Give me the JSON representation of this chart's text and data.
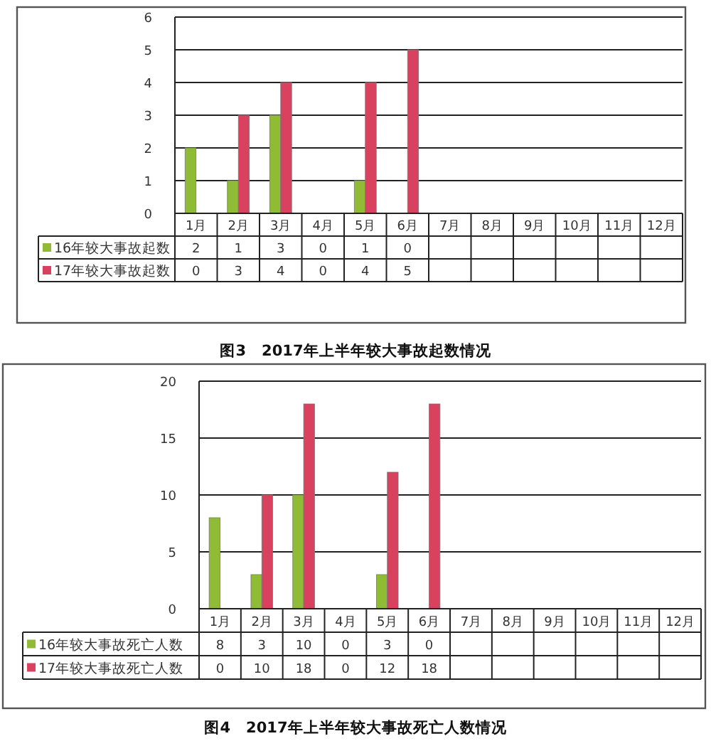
{
  "chart_data": [
    {
      "type": "bar",
      "title": "图3　2017年上半年较大事故起数情况",
      "categories": [
        "1月",
        "2月",
        "3月",
        "4月",
        "5月",
        "6月",
        "7月",
        "8月",
        "9月",
        "10月",
        "11月",
        "12月"
      ],
      "ylim": [
        0,
        6
      ],
      "yticks": [
        0,
        1,
        2,
        3,
        4,
        5,
        6
      ],
      "grid": "y",
      "legend": "bottom",
      "data_labels": true,
      "series": [
        {
          "name": "16年较大事故起数",
          "color": "#8fbc34",
          "values": [
            2,
            1,
            3,
            0,
            1,
            0,
            null,
            null,
            null,
            null,
            null,
            null
          ]
        },
        {
          "name": "17年较大事故起数",
          "color": "#d9425f",
          "values": [
            0,
            3,
            4,
            0,
            4,
            5,
            null,
            null,
            null,
            null,
            null,
            null
          ]
        }
      ]
    },
    {
      "type": "bar",
      "title": "图4　2017年上半年较大事故死亡人数情况",
      "categories": [
        "1月",
        "2月",
        "3月",
        "4月",
        "5月",
        "6月",
        "7月",
        "8月",
        "9月",
        "10月",
        "11月",
        "12月"
      ],
      "ylim": [
        0,
        20
      ],
      "yticks": [
        0,
        5,
        10,
        15,
        20
      ],
      "grid": "y",
      "legend": "bottom",
      "data_labels": true,
      "series": [
        {
          "name": "16年较大事故死亡人数",
          "color": "#8fbc34",
          "values": [
            8,
            3,
            10,
            0,
            3,
            0,
            null,
            null,
            null,
            null,
            null,
            null
          ]
        },
        {
          "name": "17年较大事故死亡人数",
          "color": "#d9425f",
          "values": [
            0,
            10,
            18,
            0,
            12,
            18,
            null,
            null,
            null,
            null,
            null,
            null
          ]
        }
      ]
    }
  ]
}
